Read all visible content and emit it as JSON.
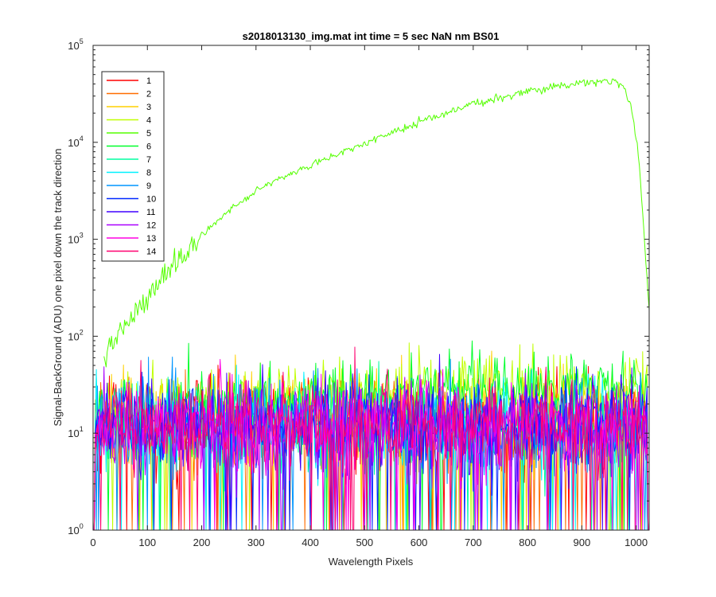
{
  "chart_data": {
    "type": "line",
    "title": "s2018013130_img.mat int time = 5 sec  NaN nm BS01",
    "xlabel": "Wavelength Pixels",
    "ylabel": "Signal-BackGround (ADU) one pixel down the track direction",
    "xlim": [
      0,
      1024
    ],
    "ylim": [
      1,
      100000
    ],
    "yscale": "log",
    "x_ticks": [
      0,
      100,
      200,
      300,
      400,
      500,
      600,
      700,
      800,
      900,
      1000
    ],
    "y_tick_base": "10",
    "y_tick_exponents": [
      "0",
      "1",
      "2",
      "3",
      "4",
      "5"
    ],
    "grid": false,
    "legend_position": "top-left",
    "series": [
      {
        "name": "1",
        "color": "#ff0000",
        "noise_level": 12,
        "noise_spread": 1.0
      },
      {
        "name": "2",
        "color": "#ff6d00",
        "noise_level": 12,
        "noise_spread": 1.0
      },
      {
        "name": "3",
        "color": "#ffd000",
        "noise_level": 14,
        "noise_spread": 1.0
      },
      {
        "name": "4",
        "color": "#c0ff00",
        "noise_level": 30,
        "noise_spread": 0.8
      },
      {
        "name": "5",
        "color": "#55ff00",
        "x": [
          20,
          30,
          50,
          75,
          100,
          130,
          160,
          200,
          250,
          300,
          350,
          400,
          450,
          500,
          550,
          600,
          650,
          700,
          750,
          800,
          850,
          900,
          940,
          960,
          975,
          990,
          1005,
          1015,
          1024
        ],
        "y": [
          55,
          75,
          110,
          160,
          240,
          420,
          650,
          1100,
          2000,
          3100,
          4400,
          5800,
          7600,
          9800,
          12500,
          16000,
          20000,
          25000,
          29000,
          33000,
          37500,
          41000,
          43000,
          43500,
          40000,
          25000,
          7000,
          1000,
          180
        ]
      },
      {
        "name": "6",
        "color": "#00ff2b",
        "noise_level": 28,
        "noise_spread": 0.8
      },
      {
        "name": "7",
        "color": "#00ffa0",
        "noise_level": 12,
        "noise_spread": 1.0
      },
      {
        "name": "8",
        "color": "#00f2ff",
        "noise_level": 12,
        "noise_spread": 1.0
      },
      {
        "name": "9",
        "color": "#0095ff",
        "noise_level": 12,
        "noise_spread": 1.0
      },
      {
        "name": "10",
        "color": "#0028ff",
        "noise_level": 12,
        "noise_spread": 1.0
      },
      {
        "name": "11",
        "color": "#4000ff",
        "noise_level": 12,
        "noise_spread": 1.0
      },
      {
        "name": "12",
        "color": "#aa00ff",
        "noise_level": 12,
        "noise_spread": 1.0
      },
      {
        "name": "13",
        "color": "#ff00e4",
        "noise_level": 12,
        "noise_spread": 1.0
      },
      {
        "name": "14",
        "color": "#ff0070",
        "noise_level": 12,
        "noise_spread": 1.0
      }
    ]
  }
}
